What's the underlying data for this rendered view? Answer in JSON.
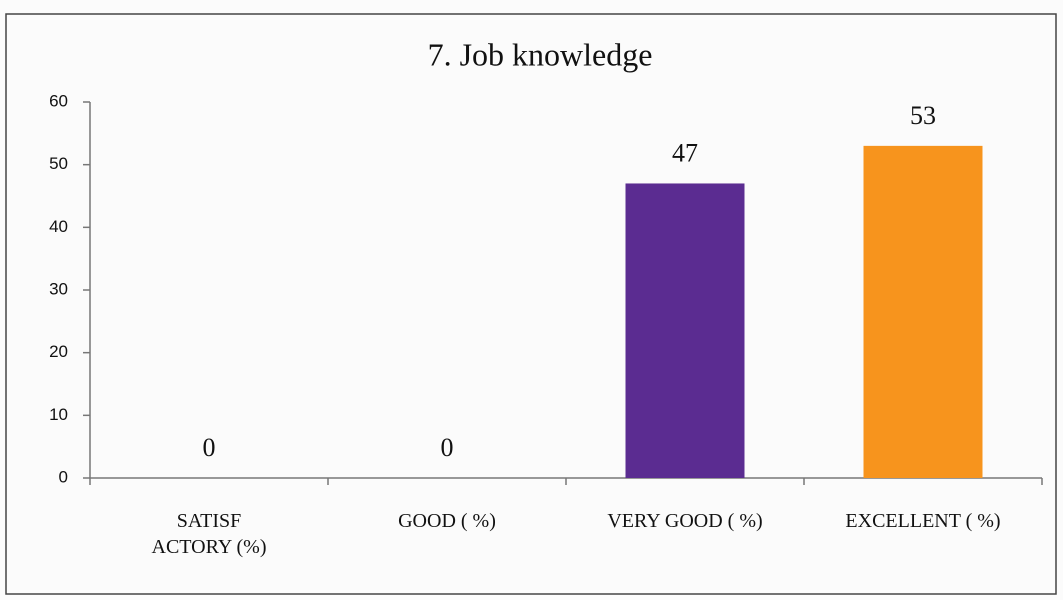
{
  "chart_data": {
    "type": "bar",
    "title": "7. Job knowledge",
    "categories": [
      "SATISF\nACTORY (%)",
      "GOOD ( %)",
      "VERY GOOD ( %)",
      "EXCELLENT ( %)"
    ],
    "values": [
      0,
      0,
      47,
      53
    ],
    "colors": [
      "#4f81bd",
      "#c0504d",
      "#5b2c91",
      "#f7941d"
    ],
    "ylim": [
      0,
      60
    ],
    "yticks": [
      0,
      10,
      20,
      30,
      40,
      50,
      60
    ],
    "grid": false
  }
}
